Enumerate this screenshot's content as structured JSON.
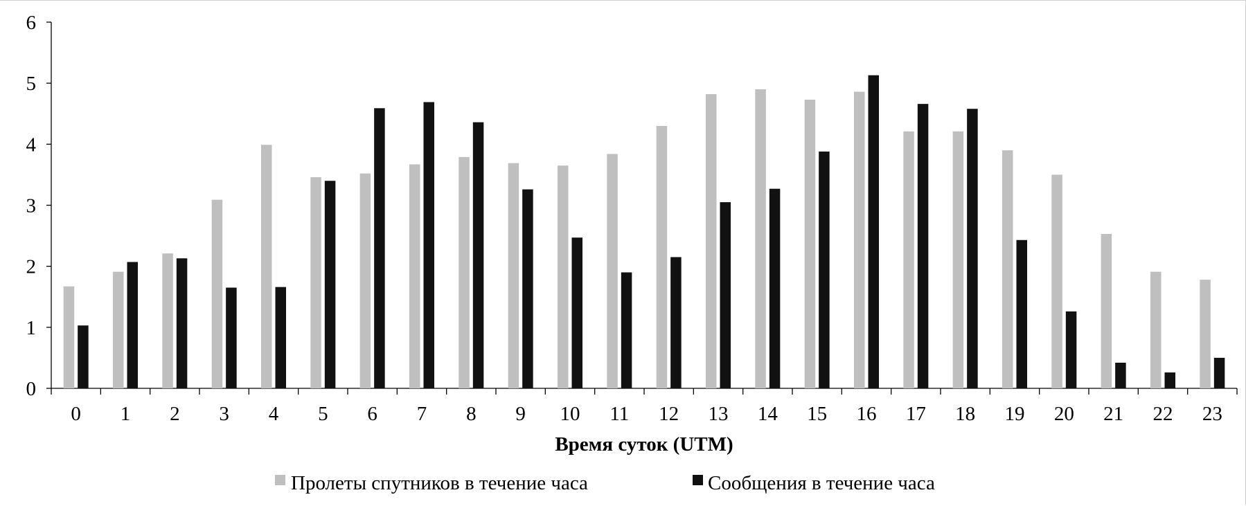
{
  "chart_data": {
    "type": "bar",
    "title": "",
    "xlabel": "Время суток (UTM)",
    "ylabel": "",
    "ylim": [
      0,
      6
    ],
    "yticks": [
      "0",
      "1",
      "2",
      "3",
      "4",
      "5",
      "6"
    ],
    "categories": [
      "0",
      "1",
      "2",
      "3",
      "4",
      "5",
      "6",
      "7",
      "8",
      "9",
      "10",
      "11",
      "12",
      "13",
      "14",
      "15",
      "16",
      "17",
      "18",
      "19",
      "20",
      "21",
      "22",
      "23"
    ],
    "grid": false,
    "legend_position": "bottom",
    "series": [
      {
        "name": "Пролеты спутников в течение часа",
        "color": "#bfbfbf",
        "values": [
          1.67,
          1.91,
          2.21,
          3.09,
          3.99,
          3.46,
          3.52,
          3.67,
          3.79,
          3.69,
          3.65,
          3.84,
          4.3,
          4.82,
          4.9,
          4.73,
          4.86,
          4.21,
          4.21,
          3.9,
          3.5,
          2.53,
          1.91,
          1.78
        ]
      },
      {
        "name": "Сообщения в течение часа",
        "color": "#111111",
        "values": [
          1.03,
          2.07,
          2.13,
          1.65,
          1.66,
          3.4,
          4.59,
          4.69,
          4.36,
          3.26,
          2.47,
          1.9,
          2.15,
          3.05,
          3.27,
          3.88,
          5.13,
          4.66,
          4.58,
          2.43,
          1.26,
          0.42,
          0.26,
          0.5
        ]
      }
    ]
  }
}
